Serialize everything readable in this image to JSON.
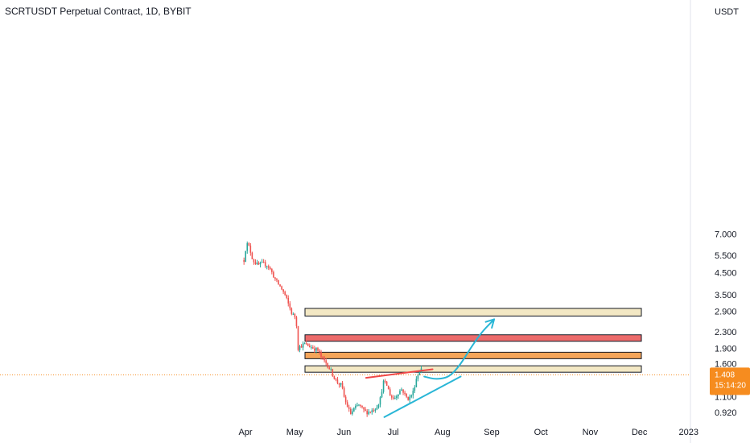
{
  "title": "SCRTUSDT Perpetual Contract, 1D, BYBIT",
  "axis_unit": "USDT",
  "price_label": "1.408",
  "countdown_label": "15:14:20",
  "colors": {
    "up": "#26a69a",
    "down": "#ef5350",
    "zone_cream": "#f3e8c4",
    "zone_red": "#ec6b6b",
    "zone_orange": "#f5a55a",
    "resistance_line": "#ef4848",
    "support_line": "#29b6d6",
    "projection": "#29b6d6",
    "last_price_tag": "#f68c1f",
    "grid": "#f0f3fa",
    "axis_text": "#131722"
  },
  "chart_data": {
    "type": "candlestick",
    "title": "SCRTUSDT Perpetual Contract, 1D, BYBIT",
    "y_scale": "log",
    "ylim": [
      0.82,
      9.5
    ],
    "x_ticks": [
      {
        "label": "Apr",
        "month_index": 0
      },
      {
        "label": "May",
        "month_index": 1
      },
      {
        "label": "Jun",
        "month_index": 2
      },
      {
        "label": "Jul",
        "month_index": 3
      },
      {
        "label": "Aug",
        "month_index": 4
      },
      {
        "label": "Sep",
        "month_index": 5
      },
      {
        "label": "Oct",
        "month_index": 6
      },
      {
        "label": "Nov",
        "month_index": 7
      },
      {
        "label": "Dec",
        "month_index": 8
      },
      {
        "label": "2023",
        "month_index": 9
      }
    ],
    "y_ticks": [
      "7.000",
      "5.500",
      "4.500",
      "3.500",
      "2.900",
      "2.300",
      "1.900",
      "1.600",
      "1.100",
      "0.920"
    ],
    "last_price": 1.408,
    "price_path": [
      [
        -0.03,
        5.2
      ],
      [
        0.02,
        6.3
      ],
      [
        0.08,
        6.0
      ],
      [
        0.15,
        5.2
      ],
      [
        0.25,
        4.9
      ],
      [
        0.35,
        5.0
      ],
      [
        0.45,
        4.9
      ],
      [
        0.52,
        4.6
      ],
      [
        0.62,
        4.1
      ],
      [
        0.72,
        3.8
      ],
      [
        0.8,
        3.5
      ],
      [
        0.95,
        2.8
      ],
      [
        1.03,
        2.7
      ],
      [
        1.06,
        1.9
      ],
      [
        1.12,
        1.95
      ],
      [
        1.2,
        2.0
      ],
      [
        1.3,
        1.95
      ],
      [
        1.4,
        1.9
      ],
      [
        1.48,
        1.85
      ],
      [
        1.55,
        1.7
      ],
      [
        1.65,
        1.6
      ],
      [
        1.75,
        1.45
      ],
      [
        1.85,
        1.3
      ],
      [
        1.95,
        1.25
      ],
      [
        2.02,
        1.05
      ],
      [
        2.08,
        0.97
      ],
      [
        2.13,
        0.9
      ],
      [
        2.2,
        0.95
      ],
      [
        2.3,
        1.0
      ],
      [
        2.38,
        0.95
      ],
      [
        2.45,
        0.92
      ],
      [
        2.55,
        0.93
      ],
      [
        2.65,
        0.97
      ],
      [
        2.73,
        1.05
      ],
      [
        2.8,
        1.3
      ],
      [
        2.87,
        1.25
      ],
      [
        2.95,
        1.1
      ],
      [
        3.02,
        1.07
      ],
      [
        3.1,
        1.15
      ],
      [
        3.18,
        1.2
      ],
      [
        3.25,
        1.1
      ],
      [
        3.32,
        1.07
      ],
      [
        3.4,
        1.15
      ],
      [
        3.47,
        1.35
      ],
      [
        3.52,
        1.45
      ],
      [
        3.57,
        1.5
      ]
    ],
    "zones": [
      {
        "low": 2.75,
        "high": 3.0,
        "color": "cream"
      },
      {
        "low": 2.1,
        "high": 2.22,
        "color": "red"
      },
      {
        "low": 1.75,
        "high": 1.82,
        "color": "orange"
      },
      {
        "low": 1.48,
        "high": 1.56,
        "color": "cream"
      }
    ],
    "trendlines": [
      {
        "name": "resistance",
        "from": [
          2.45,
          1.36
        ],
        "to": [
          3.8,
          1.5
        ],
        "color": "red"
      },
      {
        "name": "support",
        "from": [
          2.82,
          0.87
        ],
        "to": [
          4.37,
          1.38
        ],
        "color": "cyan"
      }
    ],
    "projection": {
      "points": [
        [
          3.63,
          1.38
        ],
        [
          3.9,
          1.33
        ],
        [
          4.23,
          1.4
        ],
        [
          4.73,
          2.2
        ],
        [
          5.05,
          2.65
        ]
      ],
      "arrow": true
    },
    "grid": false
  }
}
